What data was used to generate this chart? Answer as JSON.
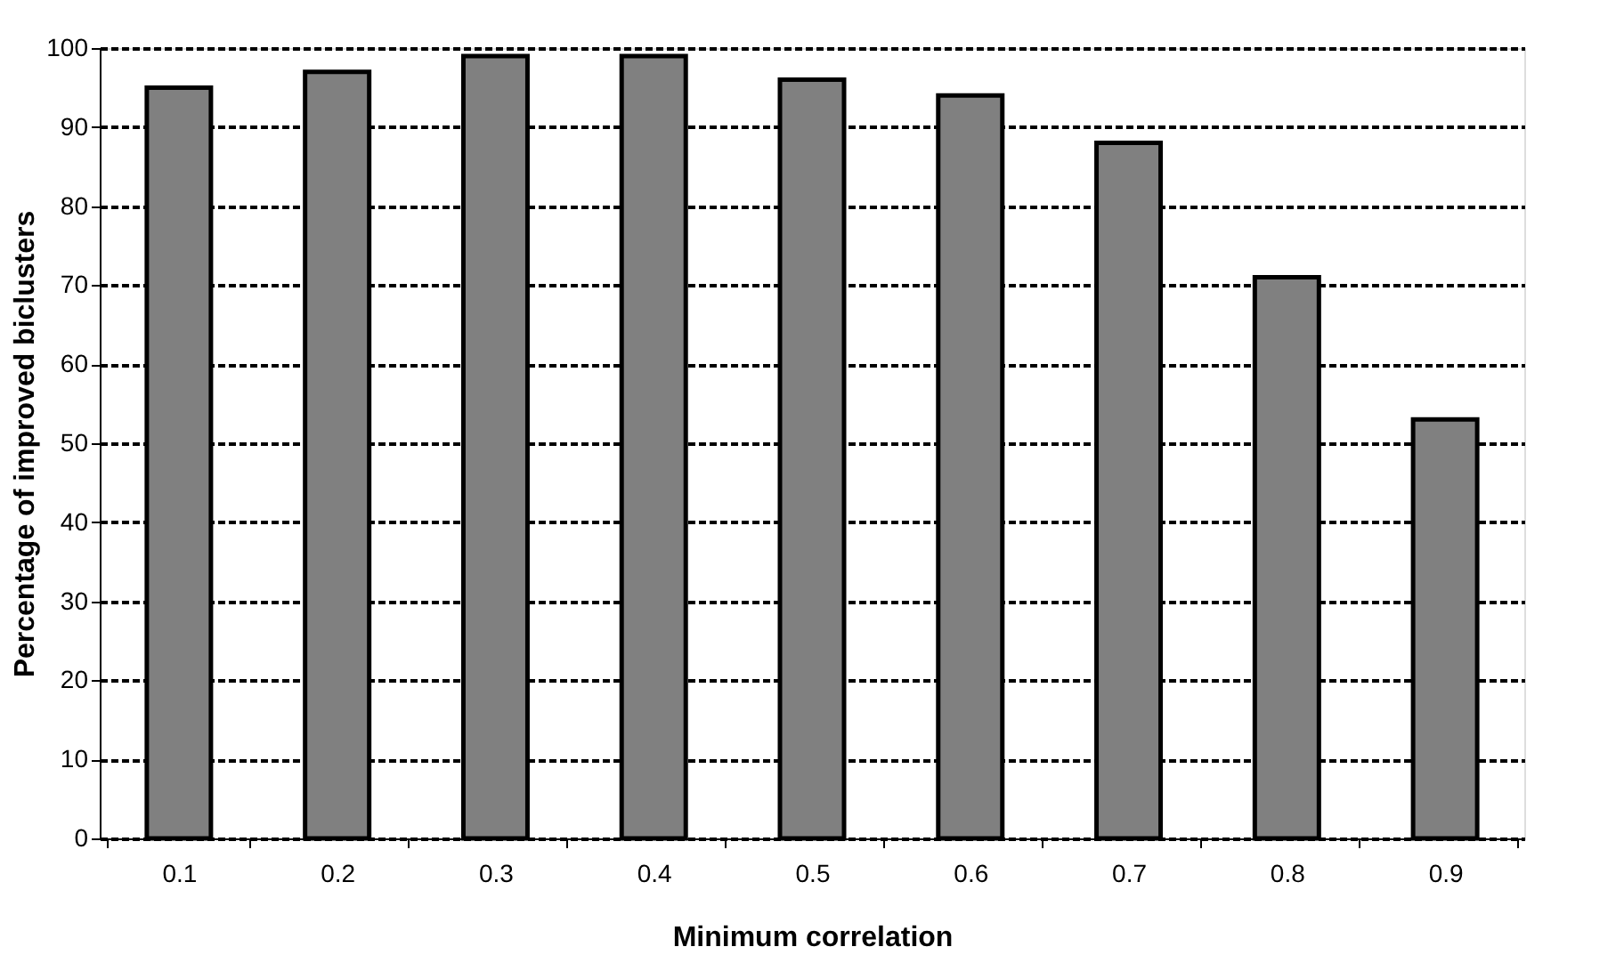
{
  "chart_data": {
    "type": "bar",
    "xlabel": "Minimum correlation",
    "ylabel": "Percentage of improved biclusters",
    "categories": [
      "0.1",
      "0.2",
      "0.3",
      "0.4",
      "0.5",
      "0.6",
      "0.7",
      "0.8",
      "0.9"
    ],
    "values": [
      95,
      97,
      99,
      99,
      96,
      94,
      88,
      71,
      53
    ],
    "color": "#808080",
    "ylim": [
      0,
      100
    ],
    "yticks": [
      0,
      10,
      20,
      30,
      40,
      50,
      60,
      70,
      80,
      90,
      100
    ],
    "grid": "y",
    "line_style": "dashed"
  }
}
